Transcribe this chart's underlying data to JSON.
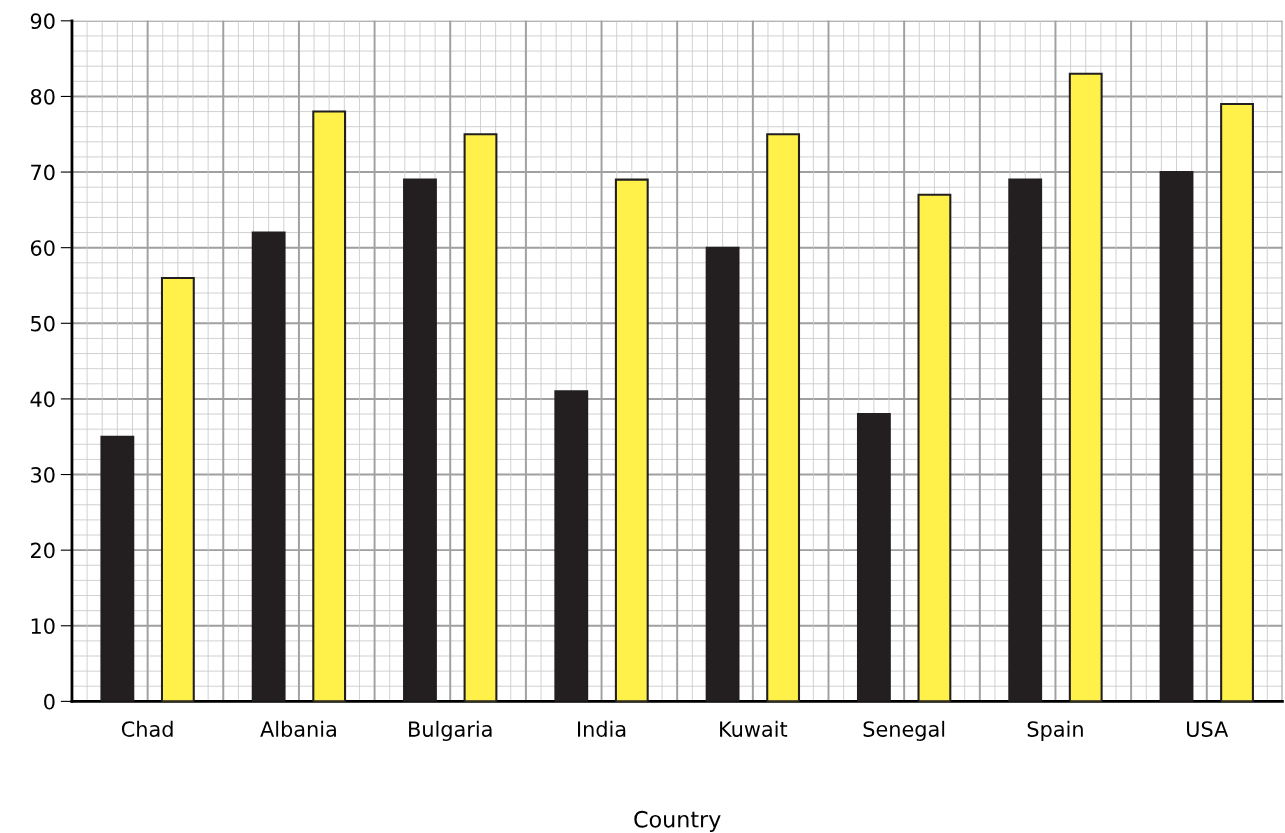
{
  "chart_data": {
    "type": "bar",
    "xlabel": "Country",
    "categories": [
      "Chad",
      "Albania",
      "Bulgaria",
      "India",
      "Kuwait",
      "Senegal",
      "Spain",
      "USA"
    ],
    "series": [
      {
        "color": "#231f20",
        "values": [
          35,
          62,
          69,
          41,
          60,
          38,
          69,
          70
        ]
      },
      {
        "color": "#fff04a",
        "values": [
          56,
          78,
          75,
          69,
          75,
          67,
          83,
          79
        ]
      }
    ],
    "ylim": [
      0,
      90
    ],
    "yticks": [
      0,
      10,
      20,
      30,
      40,
      50,
      60,
      70,
      80,
      90
    ],
    "grid": true,
    "legend": false
  }
}
